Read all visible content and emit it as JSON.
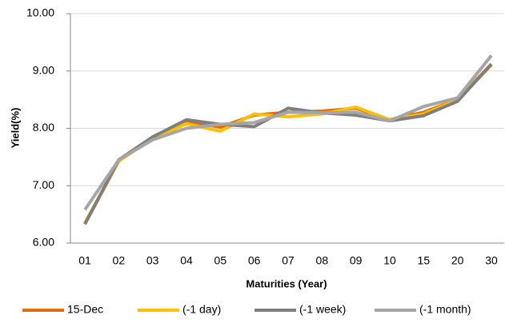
{
  "chart_data": {
    "type": "line",
    "x_label": "Maturities (Year)",
    "y_label": "Yield(%)",
    "categories": [
      "01",
      "02",
      "03",
      "04",
      "05",
      "06",
      "07",
      "08",
      "09",
      "10",
      "15",
      "20",
      "30"
    ],
    "series": [
      {
        "name": "15-Dec",
        "color": "#E46C0A",
        "values": [
          6.33,
          7.43,
          7.83,
          8.12,
          8.02,
          8.23,
          8.28,
          8.3,
          8.35,
          8.15,
          8.28,
          8.5,
          9.12
        ]
      },
      {
        "name": "(-1 day)",
        "color": "#FFC000",
        "values": [
          6.35,
          7.43,
          7.82,
          8.08,
          7.95,
          8.25,
          8.2,
          8.25,
          8.37,
          8.15,
          8.25,
          8.5,
          9.1
        ]
      },
      {
        "name": "(-1 week)",
        "color": "#7F7F7F",
        "values": [
          6.33,
          7.45,
          7.85,
          8.15,
          8.07,
          8.03,
          8.35,
          8.27,
          8.23,
          8.13,
          8.22,
          8.47,
          9.12
        ]
      },
      {
        "name": "(-1 month)",
        "color": "#A6A6A6",
        "values": [
          6.58,
          7.45,
          7.8,
          8.0,
          8.07,
          8.1,
          8.28,
          8.27,
          8.28,
          8.13,
          8.38,
          8.53,
          9.27
        ]
      }
    ],
    "ylim": [
      6,
      10
    ],
    "yticks": [
      {
        "value": 6,
        "label": "6.00"
      },
      {
        "value": 7,
        "label": "7.00"
      },
      {
        "value": 8,
        "label": "8.00"
      },
      {
        "value": 9,
        "label": "9.00"
      },
      {
        "value": 10,
        "label": "10.00"
      }
    ],
    "grid": true,
    "legend": "bottom"
  }
}
